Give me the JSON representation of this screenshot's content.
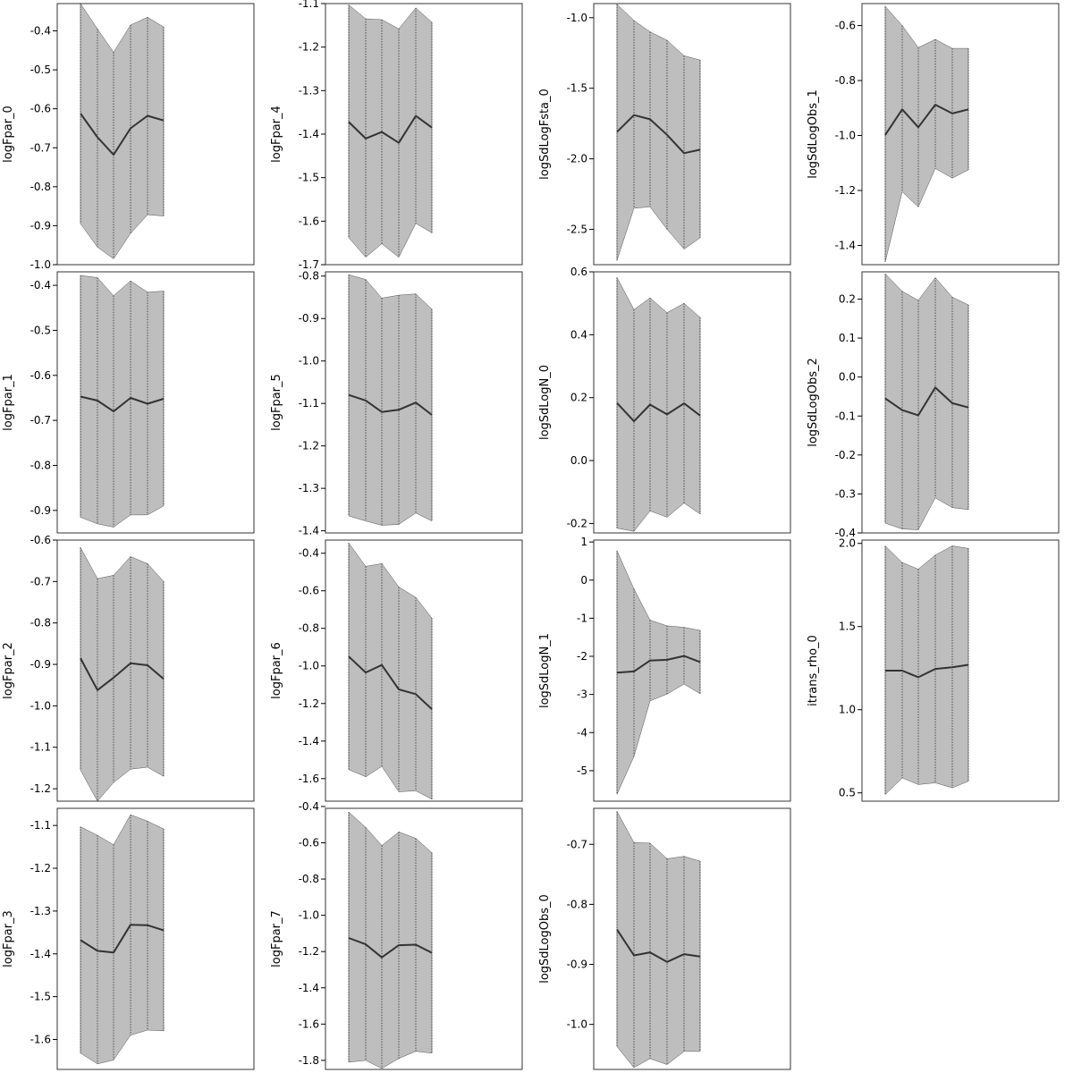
{
  "chart_data": [
    {
      "type": "area",
      "ylabel": "logFpar_0",
      "ylim": [
        -1.0,
        -0.33
      ],
      "yticks": [
        -1.0,
        -0.9,
        -0.8,
        -0.7,
        -0.6,
        -0.5,
        -0.4
      ],
      "x": [
        1,
        2,
        3,
        4,
        5,
        6
      ],
      "series": [
        {
          "mean": [
            -0.612,
            -0.673,
            -0.718,
            -0.65,
            -0.618,
            -0.63
          ],
          "lower": [
            -0.895,
            -0.955,
            -0.985,
            -0.92,
            -0.872,
            -0.875
          ],
          "upper": [
            -0.33,
            -0.395,
            -0.455,
            -0.385,
            -0.365,
            -0.39
          ]
        }
      ]
    },
    {
      "type": "area",
      "ylabel": "logFpar_1",
      "ylim": [
        -0.95,
        -0.37
      ],
      "yticks": [
        -0.9,
        -0.8,
        -0.7,
        -0.6,
        -0.5,
        -0.4
      ],
      "x": [
        1,
        2,
        3,
        4,
        5,
        6
      ],
      "series": [
        {
          "mean": [
            -0.647,
            -0.656,
            -0.68,
            -0.65,
            -0.663,
            -0.652
          ],
          "lower": [
            -0.915,
            -0.93,
            -0.937,
            -0.91,
            -0.91,
            -0.89
          ],
          "upper": [
            -0.378,
            -0.383,
            -0.423,
            -0.39,
            -0.415,
            -0.413
          ]
        }
      ]
    },
    {
      "type": "area",
      "ylabel": "logFpar_2",
      "ylim": [
        -1.23,
        -0.6
      ],
      "yticks": [
        -1.2,
        -1.1,
        -1.0,
        -0.9,
        -0.8,
        -0.7,
        -0.6
      ],
      "x": [
        1,
        2,
        3,
        4,
        5,
        6
      ],
      "series": [
        {
          "mean": [
            -0.885,
            -0.962,
            -0.932,
            -0.897,
            -0.902,
            -0.935
          ],
          "lower": [
            -1.155,
            -1.23,
            -1.185,
            -1.153,
            -1.148,
            -1.17
          ],
          "upper": [
            -0.618,
            -0.693,
            -0.685,
            -0.64,
            -0.657,
            -0.7
          ]
        }
      ]
    },
    {
      "type": "area",
      "ylabel": "logFpar_3",
      "ylim": [
        -1.67,
        -1.06
      ],
      "yticks": [
        -1.6,
        -1.5,
        -1.4,
        -1.3,
        -1.2,
        -1.1
      ],
      "x": [
        1,
        2,
        3,
        4,
        5,
        6
      ],
      "series": [
        {
          "mean": [
            -1.368,
            -1.393,
            -1.397,
            -1.332,
            -1.333,
            -1.345
          ],
          "lower": [
            -1.632,
            -1.657,
            -1.648,
            -1.59,
            -1.578,
            -1.58
          ],
          "upper": [
            -1.103,
            -1.123,
            -1.145,
            -1.075,
            -1.09,
            -1.108
          ]
        }
      ]
    },
    {
      "type": "area",
      "ylabel": "logFpar_4",
      "ylim": [
        -1.7,
        -1.1
      ],
      "yticks": [
        -1.7,
        -1.6,
        -1.5,
        -1.4,
        -1.3,
        -1.2,
        -1.1
      ],
      "x": [
        1,
        2,
        3,
        4,
        5,
        6
      ],
      "series": [
        {
          "mean": [
            -1.372,
            -1.41,
            -1.395,
            -1.42,
            -1.358,
            -1.385
          ],
          "lower": [
            -1.638,
            -1.683,
            -1.652,
            -1.683,
            -1.605,
            -1.627
          ],
          "upper": [
            -1.103,
            -1.135,
            -1.137,
            -1.158,
            -1.11,
            -1.143
          ]
        }
      ]
    },
    {
      "type": "area",
      "ylabel": "logFpar_5",
      "ylim": [
        -1.405,
        -0.79
      ],
      "yticks": [
        -1.4,
        -1.3,
        -1.2,
        -1.1,
        -1.0,
        -0.9,
        -0.8
      ],
      "x": [
        1,
        2,
        3,
        4,
        5,
        6
      ],
      "series": [
        {
          "mean": [
            -1.08,
            -1.093,
            -1.12,
            -1.115,
            -1.098,
            -1.127
          ],
          "lower": [
            -1.365,
            -1.377,
            -1.387,
            -1.385,
            -1.358,
            -1.377
          ],
          "upper": [
            -0.797,
            -0.808,
            -0.852,
            -0.845,
            -0.842,
            -0.878
          ]
        }
      ]
    },
    {
      "type": "area",
      "ylabel": "logFpar_6",
      "ylim": [
        -1.72,
        -0.33
      ],
      "yticks": [
        -1.6,
        -1.4,
        -1.2,
        -1.0,
        -0.8,
        -0.6,
        -0.4
      ],
      "x": [
        1,
        2,
        3,
        4,
        5,
        6
      ],
      "series": [
        {
          "mean": [
            -0.95,
            -1.035,
            -0.995,
            -1.125,
            -1.15,
            -1.23
          ],
          "lower": [
            -1.552,
            -1.59,
            -1.535,
            -1.67,
            -1.665,
            -1.71
          ],
          "upper": [
            -0.345,
            -0.47,
            -0.455,
            -0.58,
            -0.635,
            -0.745
          ]
        }
      ]
    },
    {
      "type": "area",
      "ylabel": "logFpar_7",
      "ylim": [
        -1.85,
        -0.41
      ],
      "yticks": [
        -1.8,
        -1.6,
        -1.4,
        -1.2,
        -1.0,
        -0.8,
        -0.6,
        -0.4
      ],
      "x": [
        1,
        2,
        3,
        4,
        5,
        6
      ],
      "series": [
        {
          "mean": [
            -1.125,
            -1.16,
            -1.232,
            -1.165,
            -1.162,
            -1.207
          ],
          "lower": [
            -1.81,
            -1.8,
            -1.845,
            -1.79,
            -1.75,
            -1.76
          ],
          "upper": [
            -0.43,
            -0.515,
            -0.615,
            -0.54,
            -0.575,
            -0.655
          ]
        }
      ]
    },
    {
      "type": "area",
      "ylabel": "logSdLogFsta_0",
      "ylim": [
        -2.75,
        -0.9
      ],
      "yticks": [
        -2.5,
        -2.0,
        -1.5,
        -1.0
      ],
      "x": [
        1,
        2,
        3,
        4,
        5,
        6
      ],
      "series": [
        {
          "mean": [
            -1.81,
            -1.69,
            -1.72,
            -1.83,
            -1.96,
            -1.935
          ],
          "lower": [
            -2.72,
            -2.35,
            -2.34,
            -2.5,
            -2.64,
            -2.56
          ],
          "upper": [
            -0.905,
            -1.02,
            -1.1,
            -1.16,
            -1.27,
            -1.3
          ]
        }
      ]
    },
    {
      "type": "area",
      "ylabel": "logSdLogN_0",
      "ylim": [
        -0.23,
        0.6
      ],
      "yticks": [
        -0.2,
        0.0,
        0.2,
        0.4,
        0.6
      ],
      "x": [
        1,
        2,
        3,
        4,
        5,
        6
      ],
      "series": [
        {
          "mean": [
            0.183,
            0.125,
            0.178,
            0.147,
            0.182,
            0.143
          ],
          "lower": [
            -0.215,
            -0.225,
            -0.16,
            -0.18,
            -0.135,
            -0.17
          ],
          "upper": [
            0.582,
            0.48,
            0.517,
            0.47,
            0.5,
            0.455
          ]
        }
      ]
    },
    {
      "type": "area",
      "ylabel": "logSdLogN_1",
      "ylim": [
        -5.8,
        1.05
      ],
      "yticks": [
        -5,
        -4,
        -3,
        -2,
        -1,
        0,
        1
      ],
      "x": [
        1,
        2,
        3,
        4,
        5,
        6
      ],
      "series": [
        {
          "mean": [
            -2.43,
            -2.395,
            -2.11,
            -2.09,
            -1.99,
            -2.15
          ],
          "lower": [
            -5.62,
            -4.63,
            -3.17,
            -2.99,
            -2.73,
            -2.98
          ],
          "upper": [
            0.77,
            -0.23,
            -1.05,
            -1.2,
            -1.24,
            -1.32
          ]
        }
      ]
    },
    {
      "type": "area",
      "ylabel": "logSdLogObs_0",
      "ylim": [
        -1.075,
        -0.64
      ],
      "yticks": [
        -1.0,
        -0.9,
        -0.8,
        -0.7
      ],
      "x": [
        1,
        2,
        3,
        4,
        5,
        6
      ],
      "series": [
        {
          "mean": [
            -0.842,
            -0.885,
            -0.88,
            -0.896,
            -0.883,
            -0.887
          ],
          "lower": [
            -1.037,
            -1.072,
            -1.057,
            -1.067,
            -1.045,
            -1.045
          ],
          "upper": [
            -0.645,
            -0.697,
            -0.698,
            -0.724,
            -0.72,
            -0.728
          ]
        }
      ]
    },
    {
      "type": "area",
      "ylabel": "logSdLogObs_1",
      "ylim": [
        -1.47,
        -0.52
      ],
      "yticks": [
        -1.4,
        -1.2,
        -1.0,
        -0.8,
        -0.6
      ],
      "x": [
        1,
        2,
        3,
        4,
        5,
        6
      ],
      "series": [
        {
          "mean": [
            -0.998,
            -0.905,
            -0.97,
            -0.888,
            -0.92,
            -0.905
          ],
          "lower": [
            -1.46,
            -1.205,
            -1.26,
            -1.12,
            -1.155,
            -1.125
          ],
          "upper": [
            -0.53,
            -0.6,
            -0.68,
            -0.65,
            -0.683,
            -0.683
          ]
        }
      ]
    },
    {
      "type": "area",
      "ylabel": "logSdLogObs_2",
      "ylim": [
        -0.4,
        0.27
      ],
      "yticks": [
        -0.4,
        -0.3,
        -0.2,
        -0.1,
        0.0,
        0.1,
        0.2
      ],
      "x": [
        1,
        2,
        3,
        4,
        5,
        6
      ],
      "series": [
        {
          "mean": [
            -0.055,
            -0.085,
            -0.098,
            -0.027,
            -0.067,
            -0.078
          ],
          "lower": [
            -0.375,
            -0.39,
            -0.392,
            -0.31,
            -0.335,
            -0.34
          ],
          "upper": [
            0.265,
            0.22,
            0.197,
            0.255,
            0.205,
            0.185
          ]
        }
      ]
    },
    {
      "type": "area",
      "ylabel": "itrans_rho_0",
      "ylim": [
        0.45,
        2.02
      ],
      "yticks": [
        0.5,
        1.0,
        1.5,
        2.0
      ],
      "x": [
        1,
        2,
        3,
        4,
        5,
        6
      ],
      "series": [
        {
          "mean": [
            1.235,
            1.235,
            1.195,
            1.245,
            1.255,
            1.27
          ],
          "lower": [
            0.49,
            0.59,
            0.55,
            0.56,
            0.53,
            0.57
          ],
          "upper": [
            1.985,
            1.885,
            1.845,
            1.93,
            1.985,
            1.97
          ]
        }
      ]
    }
  ]
}
